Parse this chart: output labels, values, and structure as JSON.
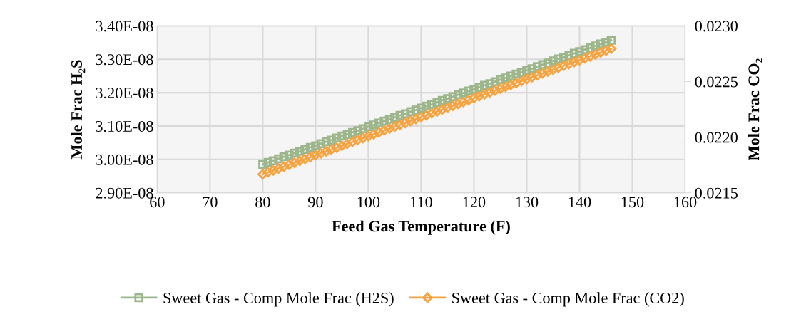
{
  "chart_data": {
    "type": "line",
    "xlabel": "Feed Gas Temperature (F)",
    "ylabel": "Mole Frac H₂S",
    "y2label": "Mole Frac CO₂",
    "x": [
      80,
      81,
      82,
      83,
      84,
      85,
      86,
      87,
      88,
      89,
      90,
      91,
      92,
      93,
      94,
      95,
      96,
      97,
      98,
      99,
      100,
      101,
      102,
      103,
      104,
      105,
      106,
      107,
      108,
      109,
      110,
      111,
      112,
      113,
      114,
      115,
      116,
      117,
      118,
      119,
      120,
      121,
      122,
      123,
      124,
      125,
      126,
      127,
      128,
      129,
      130,
      131,
      132,
      133,
      134,
      135,
      136,
      137,
      138,
      139,
      140,
      141,
      142,
      143,
      144,
      145,
      146
    ],
    "series": [
      {
        "name": "Sweet Gas - Comp Mole Frac (H2S)",
        "color": "#9db68c",
        "marker": "square",
        "values": [
          2.985e-08,
          2.991e-08,
          2.996e-08,
          3.002e-08,
          3.008e-08,
          3.013e-08,
          3.019e-08,
          3.024e-08,
          3.03e-08,
          3.036e-08,
          3.041e-08,
          3.047e-08,
          3.053e-08,
          3.058e-08,
          3.064e-08,
          3.07e-08,
          3.075e-08,
          3.081e-08,
          3.086e-08,
          3.092e-08,
          3.098e-08,
          3.103e-08,
          3.109e-08,
          3.115e-08,
          3.12e-08,
          3.126e-08,
          3.132e-08,
          3.137e-08,
          3.143e-08,
          3.148e-08,
          3.154e-08,
          3.16e-08,
          3.165e-08,
          3.171e-08,
          3.177e-08,
          3.182e-08,
          3.188e-08,
          3.194e-08,
          3.199e-08,
          3.205e-08,
          3.21e-08,
          3.216e-08,
          3.222e-08,
          3.227e-08,
          3.233e-08,
          3.239e-08,
          3.244e-08,
          3.25e-08,
          3.256e-08,
          3.261e-08,
          3.267e-08,
          3.272e-08,
          3.278e-08,
          3.284e-08,
          3.289e-08,
          3.295e-08,
          3.301e-08,
          3.306e-08,
          3.312e-08,
          3.318e-08,
          3.323e-08,
          3.329e-08,
          3.334e-08,
          3.34e-08,
          3.346e-08,
          3.351e-08,
          3.357e-08
        ]
      },
      {
        "name": "Sweet Gas - Comp Mole Frac (CO2)",
        "color": "#f4a443",
        "marker": "diamond",
        "axis": "y2",
        "values": [
          0.021667,
          0.021684,
          0.021701,
          0.021718,
          0.021735,
          0.021752,
          0.02177,
          0.021787,
          0.021804,
          0.021821,
          0.021838,
          0.021855,
          0.021872,
          0.021889,
          0.021906,
          0.021923,
          0.02194,
          0.021958,
          0.021975,
          0.021992,
          0.022009,
          0.022026,
          0.022043,
          0.02206,
          0.022077,
          0.022094,
          0.022111,
          0.022128,
          0.022146,
          0.022163,
          0.02218,
          0.022197,
          0.022214,
          0.022231,
          0.022248,
          0.022265,
          0.022282,
          0.022299,
          0.022316,
          0.022333,
          0.022351,
          0.022368,
          0.022385,
          0.022402,
          0.022419,
          0.022436,
          0.022453,
          0.02247,
          0.022487,
          0.022504,
          0.022521,
          0.022539,
          0.022556,
          0.022573,
          0.02259,
          0.022607,
          0.022624,
          0.022641,
          0.022658,
          0.022675,
          0.022692,
          0.022709,
          0.022727,
          0.022744,
          0.022761,
          0.022778,
          0.022795
        ]
      }
    ],
    "xlim": [
      60,
      160
    ],
    "xticks": [
      60,
      70,
      80,
      90,
      100,
      110,
      120,
      130,
      140,
      150,
      160
    ],
    "ylim": [
      2.9e-08,
      3.4e-08
    ],
    "yticks": [
      {
        "value": 2.9e-08,
        "label": "2.90E-08"
      },
      {
        "value": 3e-08,
        "label": "3.00E-08"
      },
      {
        "value": 3.1e-08,
        "label": "3.10E-08"
      },
      {
        "value": 3.2e-08,
        "label": "3.20E-08"
      },
      {
        "value": 3.3e-08,
        "label": "3.30E-08"
      },
      {
        "value": 3.4e-08,
        "label": "3.40E-08"
      }
    ],
    "y2lim": [
      0.0215,
      0.023
    ],
    "y2ticks": [
      {
        "value": 0.0215,
        "label": "0.0215"
      },
      {
        "value": 0.022,
        "label": "0.0220"
      },
      {
        "value": 0.0225,
        "label": "0.0225"
      },
      {
        "value": 0.023,
        "label": "0.0230"
      }
    ],
    "grid": true,
    "legend": "bottom"
  }
}
